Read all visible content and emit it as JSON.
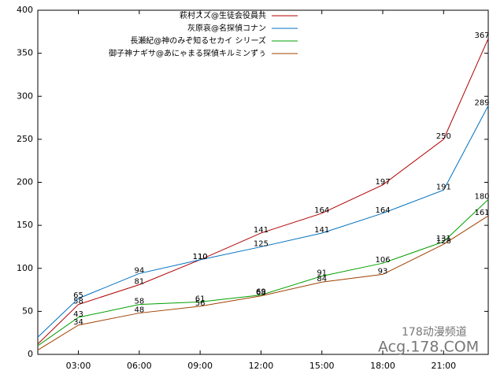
{
  "chart_data": {
    "type": "line",
    "x": [
      1,
      3,
      6,
      9,
      12,
      15,
      18,
      21,
      23.2
    ],
    "xlim": [
      1,
      23.2
    ],
    "xticks": [
      {
        "value": 3,
        "label": "03:00"
      },
      {
        "value": 6,
        "label": "06:00"
      },
      {
        "value": 9,
        "label": "09:00"
      },
      {
        "value": 12,
        "label": "12:00"
      },
      {
        "value": 15,
        "label": "15:00"
      },
      {
        "value": 18,
        "label": "18:00"
      },
      {
        "value": 21,
        "label": "21:00"
      }
    ],
    "ylim": [
      0,
      400
    ],
    "yticks": [
      0,
      50,
      100,
      150,
      200,
      250,
      300,
      350,
      400
    ],
    "grid": false,
    "legend": "top",
    "series": [
      {
        "name": "萩村スズ@生徒会役員共",
        "color": "#b00000",
        "values": [
          12,
          58,
          81,
          110,
          141,
          164,
          197,
          250,
          367
        ]
      },
      {
        "name": "灰原哀@名探偵コナン",
        "color": "#0070c0",
        "values": [
          20,
          65,
          94,
          110,
          125,
          141,
          164,
          191,
          289
        ]
      },
      {
        "name": "長瀬紀@神のみぞ知るセカイ シリーズ",
        "color": "#00a000",
        "values": [
          10,
          43,
          58,
          61,
          69,
          91,
          106,
          131,
          180
        ]
      },
      {
        "name": "御子神ナギサ@あにゃまる探偵キルミンずぅ",
        "color": "#a04000",
        "values": [
          5,
          34,
          48,
          56,
          68,
          84,
          93,
          128,
          161
        ]
      }
    ],
    "watermark": [
      "178动漫频道",
      "Acg.178.COM"
    ]
  }
}
